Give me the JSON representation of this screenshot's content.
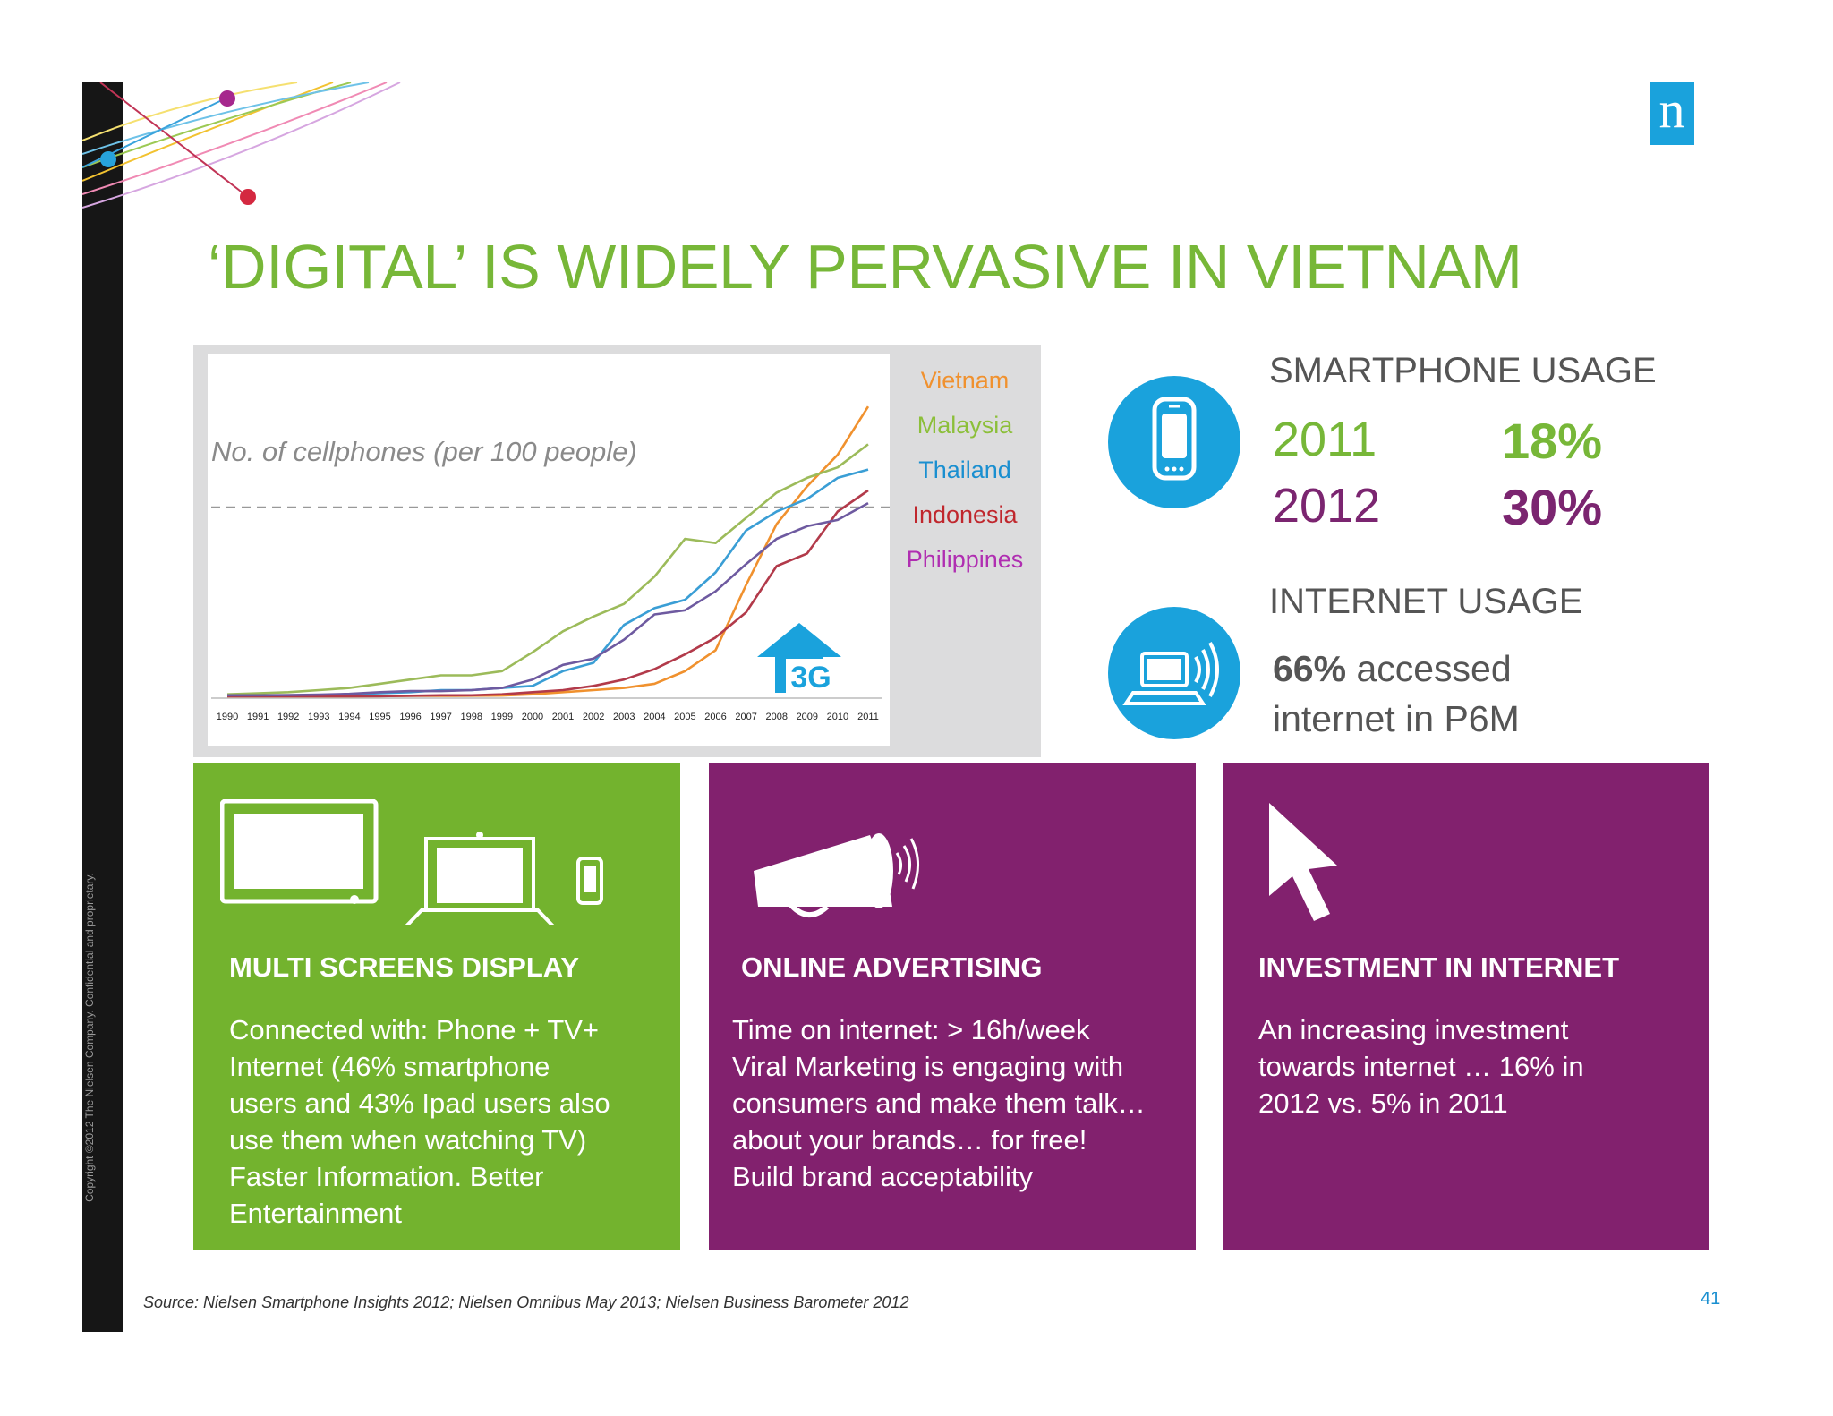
{
  "title": "‘DIGITAL’ IS WIDELY PERVASIVE IN VIETNAM",
  "logo_letter": "n",
  "copyright": "Copyright ©2012 The Nielsen Company. Confidential and proprietary.",
  "chart_data": {
    "type": "line",
    "title": "No. of cellphones (per 100 people)",
    "categories": [
      "1990",
      "1991",
      "1992",
      "1993",
      "1994",
      "1995",
      "1996",
      "1997",
      "1998",
      "1999",
      "2000",
      "2001",
      "2002",
      "2003",
      "2004",
      "2005",
      "2006",
      "2007",
      "2008",
      "2009",
      "2010",
      "2011"
    ],
    "ylim": [
      0,
      150
    ],
    "reference_line": 90,
    "annotation": "3G",
    "series": [
      {
        "name": "Vietnam",
        "color": "#f0912e",
        "values": [
          0,
          0,
          0,
          0,
          0,
          0.1,
          0.2,
          0.2,
          0.3,
          0.4,
          1,
          2,
          3,
          4,
          6,
          12,
          22,
          53,
          82,
          100,
          115,
          138
        ]
      },
      {
        "name": "Malaysia",
        "color": "#9cbb5a",
        "values": [
          1,
          1.5,
          2,
          3,
          4,
          6,
          8,
          10,
          10,
          12,
          21,
          31,
          38,
          44,
          57,
          75,
          73,
          85,
          97,
          104,
          109,
          120
        ]
      },
      {
        "name": "Thailand",
        "color": "#3a9ed5",
        "values": [
          0.5,
          0.5,
          0.5,
          0.6,
          1,
          1.5,
          2,
          3,
          3,
          4,
          5,
          12,
          16,
          34,
          42,
          46,
          59,
          79,
          88,
          94,
          104,
          108
        ]
      },
      {
        "name": "Indonesia",
        "color": "#b23a4a",
        "values": [
          0,
          0,
          0,
          0,
          0,
          0.1,
          0.3,
          0.5,
          0.5,
          1,
          2,
          3,
          5,
          8,
          13,
          20,
          28,
          40,
          62,
          68,
          88,
          98
        ]
      },
      {
        "name": "Philippines",
        "color": "#6e5aa0",
        "values": [
          0.5,
          0.5,
          0.6,
          0.8,
          1.2,
          2,
          2.5,
          2.5,
          3,
          4,
          8,
          15,
          18,
          27,
          39,
          41,
          50,
          63,
          75,
          81,
          84,
          92
        ]
      }
    ]
  },
  "legend_colors": {
    "Vietnam": "#f0912e",
    "Malaysia": "#8cbf3a",
    "Thailand": "#1a8fd0",
    "Indonesia": "#c0272d",
    "Philippines": "#b02eb1"
  },
  "smartphone": {
    "heading": "SMARTPHONE USAGE",
    "rows": [
      {
        "year": "2011",
        "pct": "18%",
        "color": "#77b738"
      },
      {
        "year": "2012",
        "pct": "30%",
        "color": "#7b2570"
      }
    ]
  },
  "internet": {
    "heading": "INTERNET USAGE",
    "bold": "66%",
    "line1_rest": " accessed",
    "line2": "internet in P6M"
  },
  "tiles": [
    {
      "heading": "MULTI SCREENS DISPLAY",
      "color": "#73b32e",
      "body": "Connected with: Phone + TV+\nInternet (46% smartphone\nusers and 43% Ipad users also\nuse them when watching TV)\n Faster Information. Better\nEntertainment"
    },
    {
      "heading": "ONLINE ADVERTISING",
      "color": "#82216e",
      "body": " Time on internet:  > 16h/week\n Viral Marketing is engaging with\nconsumers and make them talk…\nabout your brands… for free!\n Build brand acceptability"
    },
    {
      "heading": "INVESTMENT IN INTERNET",
      "color": "#82216e",
      "body": "An increasing investment\ntowards internet … 16% in\n2012 vs. 5% in 2011"
    }
  ],
  "source": "Source: Nielsen Smartphone Insights 2012; Nielsen Omnibus May 2013; Nielsen Business Barometer 2012",
  "page_number": "41",
  "icons": [
    "smartphone-icon",
    "laptop-wifi-icon",
    "screens-icon",
    "megaphone-icon",
    "cursor-icon"
  ]
}
